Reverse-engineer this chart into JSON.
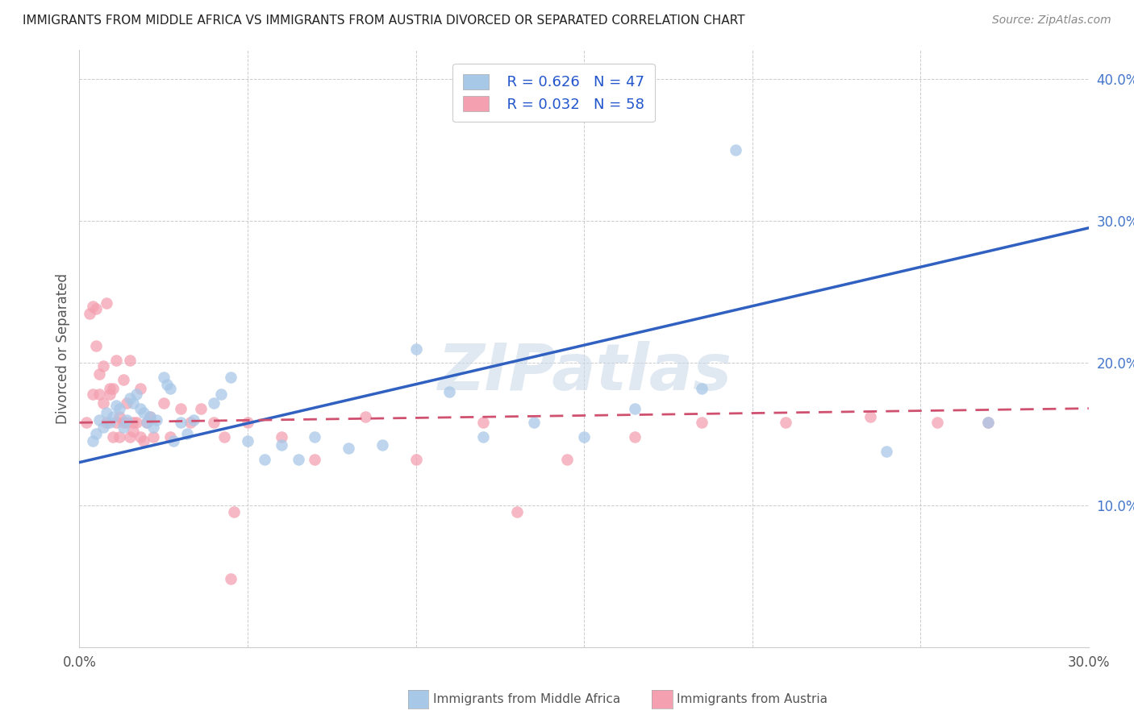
{
  "title": "IMMIGRANTS FROM MIDDLE AFRICA VS IMMIGRANTS FROM AUSTRIA DIVORCED OR SEPARATED CORRELATION CHART",
  "source": "Source: ZipAtlas.com",
  "ylabel": "Divorced or Separated",
  "xlim": [
    0.0,
    0.3
  ],
  "ylim": [
    0.0,
    0.42
  ],
  "yticks": [
    0.1,
    0.2,
    0.3,
    0.4
  ],
  "ytick_labels": [
    "10.0%",
    "20.0%",
    "30.0%",
    "40.0%"
  ],
  "xtick_positions": [
    0.0,
    0.05,
    0.1,
    0.15,
    0.2,
    0.25,
    0.3
  ],
  "xtick_labels": [
    "0.0%",
    "",
    "",
    "",
    "",
    "",
    "30.0%"
  ],
  "legend_R1": "R = 0.626",
  "legend_N1": "N = 47",
  "legend_R2": "R = 0.032",
  "legend_N2": "N = 58",
  "blue_color": "#a8c8e8",
  "pink_color": "#f4a0b0",
  "blue_line_color": "#3060c0",
  "pink_line_color": "#d05070",
  "watermark": "ZIPatlas",
  "legend_label1": "Immigrants from Middle Africa",
  "legend_label2": "Immigrants from Austria",
  "blue_scatter_x": [
    0.004,
    0.005,
    0.006,
    0.007,
    0.008,
    0.009,
    0.01,
    0.011,
    0.012,
    0.013,
    0.014,
    0.015,
    0.016,
    0.017,
    0.018,
    0.019,
    0.02,
    0.021,
    0.022,
    0.023,
    0.025,
    0.026,
    0.027,
    0.028,
    0.03,
    0.032,
    0.034,
    0.04,
    0.042,
    0.045,
    0.05,
    0.055,
    0.06,
    0.065,
    0.07,
    0.08,
    0.09,
    0.1,
    0.11,
    0.12,
    0.135,
    0.15,
    0.165,
    0.185,
    0.195,
    0.24,
    0.27
  ],
  "blue_scatter_y": [
    0.145,
    0.15,
    0.16,
    0.155,
    0.165,
    0.158,
    0.162,
    0.17,
    0.168,
    0.155,
    0.16,
    0.175,
    0.172,
    0.178,
    0.168,
    0.165,
    0.158,
    0.162,
    0.155,
    0.16,
    0.19,
    0.185,
    0.182,
    0.145,
    0.158,
    0.15,
    0.16,
    0.172,
    0.178,
    0.19,
    0.145,
    0.132,
    0.142,
    0.132,
    0.148,
    0.14,
    0.142,
    0.21,
    0.18,
    0.148,
    0.158,
    0.148,
    0.168,
    0.182,
    0.35,
    0.138,
    0.158
  ],
  "pink_scatter_x": [
    0.002,
    0.003,
    0.004,
    0.004,
    0.005,
    0.005,
    0.006,
    0.006,
    0.007,
    0.007,
    0.008,
    0.008,
    0.009,
    0.009,
    0.01,
    0.01,
    0.011,
    0.011,
    0.012,
    0.012,
    0.013,
    0.013,
    0.014,
    0.014,
    0.015,
    0.015,
    0.016,
    0.016,
    0.017,
    0.018,
    0.018,
    0.019,
    0.02,
    0.021,
    0.022,
    0.025,
    0.027,
    0.03,
    0.033,
    0.036,
    0.04,
    0.043,
    0.046,
    0.05,
    0.06,
    0.07,
    0.085,
    0.1,
    0.12,
    0.145,
    0.165,
    0.185,
    0.21,
    0.235,
    0.255,
    0.27,
    0.045,
    0.13
  ],
  "pink_scatter_y": [
    0.158,
    0.235,
    0.178,
    0.24,
    0.212,
    0.238,
    0.178,
    0.192,
    0.172,
    0.198,
    0.242,
    0.158,
    0.178,
    0.182,
    0.182,
    0.148,
    0.158,
    0.202,
    0.162,
    0.148,
    0.158,
    0.188,
    0.158,
    0.172,
    0.148,
    0.202,
    0.158,
    0.152,
    0.158,
    0.148,
    0.182,
    0.145,
    0.158,
    0.162,
    0.148,
    0.172,
    0.148,
    0.168,
    0.158,
    0.168,
    0.158,
    0.148,
    0.095,
    0.158,
    0.148,
    0.132,
    0.162,
    0.132,
    0.158,
    0.132,
    0.148,
    0.158,
    0.158,
    0.162,
    0.158,
    0.158,
    0.048,
    0.095
  ],
  "blue_line_x": [
    0.0,
    0.3
  ],
  "blue_line_y": [
    0.13,
    0.295
  ],
  "pink_line_x": [
    0.0,
    0.3
  ],
  "pink_line_y": [
    0.158,
    0.168
  ]
}
